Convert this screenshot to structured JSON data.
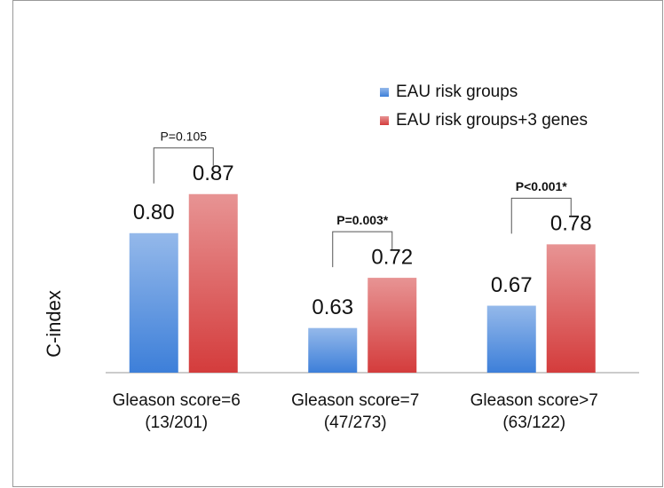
{
  "chart_data": {
    "type": "bar",
    "y_label": "C-index",
    "categories": [
      [
        "Gleason score=6",
        "(13/201)"
      ],
      [
        "Gleason score=7",
        "(47/273)"
      ],
      [
        "Gleason score>7",
        "(63/122)"
      ]
    ],
    "series": [
      {
        "name": "EAU risk groups",
        "color": "#3d7fd9",
        "values": [
          0.8,
          0.63,
          0.67
        ],
        "value_labels": [
          "0.80",
          "0.63",
          "0.67"
        ]
      },
      {
        "name": "EAU risk groups+3 genes",
        "color": "#d43c3c",
        "values": [
          0.87,
          0.72,
          0.78
        ],
        "value_labels": [
          "0.87",
          "0.72",
          "0.78"
        ]
      }
    ],
    "annotations": [
      "P=0.105",
      "P=0.003*",
      "P<0.001*"
    ],
    "annotation_bold": [
      false,
      true,
      true
    ],
    "ylim": [
      0.55,
      1.0
    ],
    "legend": "top-right"
  }
}
